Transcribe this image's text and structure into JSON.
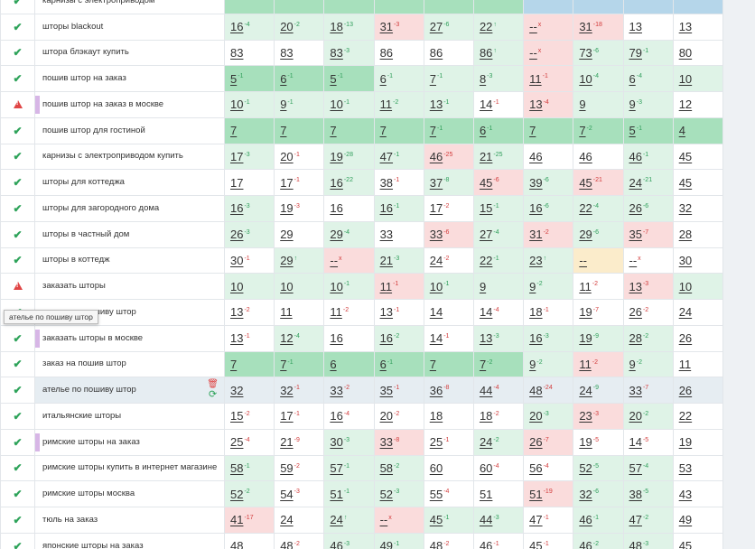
{
  "tooltip": "ателье по пошиву штор",
  "rows": [
    {
      "kw": "карнизы с электроприводом",
      "status": "ok",
      "hl": false,
      "bar": false,
      "cells": [
        [
          "",
          "",
          "G"
        ],
        [
          "",
          "",
          "G"
        ],
        [
          "",
          "",
          "G"
        ],
        [
          "",
          "",
          "G"
        ],
        [
          "",
          "",
          "G"
        ],
        [
          "",
          "",
          "G"
        ],
        [
          "",
          "",
          "b"
        ],
        [
          "",
          "",
          "b"
        ],
        [
          "",
          "",
          "b"
        ],
        [
          "",
          "",
          "b"
        ]
      ]
    },
    {
      "kw": "шторы blackout",
      "status": "ok",
      "hl": false,
      "bar": false,
      "cells": [
        [
          "16",
          "-4",
          "g"
        ],
        [
          "20",
          "-2",
          "g"
        ],
        [
          "18",
          "-13",
          "g"
        ],
        [
          "31",
          "-3",
          "r"
        ],
        [
          "27",
          "-6",
          "g"
        ],
        [
          "22",
          "↑",
          "g"
        ],
        [
          "--",
          "x",
          "r"
        ],
        [
          "31",
          "-18",
          "r"
        ],
        [
          "13",
          "",
          "w"
        ],
        [
          "13",
          "",
          "w"
        ]
      ]
    },
    {
      "kw": "штора блэкаут купить",
      "status": "ok",
      "hl": false,
      "bar": false,
      "cells": [
        [
          "83",
          "",
          "w"
        ],
        [
          "83",
          "",
          "w"
        ],
        [
          "83",
          "-3",
          "g"
        ],
        [
          "86",
          "",
          "w"
        ],
        [
          "86",
          "",
          "w"
        ],
        [
          "86",
          "↑",
          "g"
        ],
        [
          "--",
          "x",
          "r"
        ],
        [
          "73",
          "-6",
          "g"
        ],
        [
          "79",
          "-1",
          "g"
        ],
        [
          "80",
          "",
          "w"
        ]
      ]
    },
    {
      "kw": "пошив штор на заказ",
      "status": "ok",
      "hl": false,
      "bar": false,
      "cells": [
        [
          "5",
          "-1",
          "G"
        ],
        [
          "6",
          "-1",
          "G"
        ],
        [
          "5",
          "-1",
          "G"
        ],
        [
          "6",
          "-1",
          "g"
        ],
        [
          "7",
          "-1",
          "g"
        ],
        [
          "8",
          "-3",
          "g"
        ],
        [
          "11",
          "-1",
          "r"
        ],
        [
          "10",
          "-4",
          "g"
        ],
        [
          "6",
          "-4",
          "g"
        ],
        [
          "10",
          "",
          "g"
        ]
      ]
    },
    {
      "kw": "пошив штор на заказ в москве",
      "status": "warn",
      "hl": false,
      "bar": true,
      "cells": [
        [
          "10",
          "-1",
          "g"
        ],
        [
          "9",
          "-1",
          "g"
        ],
        [
          "10",
          "-1",
          "g"
        ],
        [
          "11",
          "-2",
          "g"
        ],
        [
          "13",
          "-1",
          "g"
        ],
        [
          "14",
          "-1",
          "w"
        ],
        [
          "13",
          "-4",
          "r"
        ],
        [
          "9",
          "",
          "g"
        ],
        [
          "9",
          "-3",
          "g"
        ],
        [
          "12",
          "",
          "w"
        ]
      ]
    },
    {
      "kw": "пошив штор для гостиной",
      "status": "ok",
      "hl": false,
      "bar": false,
      "cells": [
        [
          "7",
          "",
          "G"
        ],
        [
          "7",
          "",
          "G"
        ],
        [
          "7",
          "",
          "G"
        ],
        [
          "7",
          "",
          "G"
        ],
        [
          "7",
          "-1",
          "G"
        ],
        [
          "6",
          "-1",
          "G"
        ],
        [
          "7",
          "",
          "G"
        ],
        [
          "7",
          "-2",
          "G"
        ],
        [
          "5",
          "-1",
          "G"
        ],
        [
          "4",
          "",
          "G"
        ]
      ]
    },
    {
      "kw": "карнизы с электроприводом купить",
      "status": "ok",
      "hl": false,
      "bar": false,
      "cells": [
        [
          "17",
          "-3",
          "g"
        ],
        [
          "20",
          "-1",
          "w"
        ],
        [
          "19",
          "-28",
          "g"
        ],
        [
          "47",
          "-1",
          "g"
        ],
        [
          "46",
          "-25",
          "r"
        ],
        [
          "21",
          "-25",
          "g"
        ],
        [
          "46",
          "",
          "w"
        ],
        [
          "46",
          "",
          "w"
        ],
        [
          "46",
          "-1",
          "g"
        ],
        [
          "45",
          "",
          "w"
        ]
      ]
    },
    {
      "kw": "шторы для коттеджа",
      "status": "ok",
      "hl": false,
      "bar": false,
      "cells": [
        [
          "17",
          "",
          "w"
        ],
        [
          "17",
          "-1",
          "w"
        ],
        [
          "16",
          "-22",
          "g"
        ],
        [
          "38",
          "-1",
          "w"
        ],
        [
          "37",
          "-8",
          "g"
        ],
        [
          "45",
          "-6",
          "r"
        ],
        [
          "39",
          "-6",
          "g"
        ],
        [
          "45",
          "-21",
          "r"
        ],
        [
          "24",
          "-21",
          "g"
        ],
        [
          "45",
          "",
          "w"
        ]
      ]
    },
    {
      "kw": "шторы для загородного дома",
      "status": "ok",
      "hl": false,
      "bar": false,
      "cells": [
        [
          "16",
          "-3",
          "g"
        ],
        [
          "19",
          "-3",
          "w"
        ],
        [
          "16",
          "",
          "w"
        ],
        [
          "16",
          "-1",
          "g"
        ],
        [
          "17",
          "-2",
          "w"
        ],
        [
          "15",
          "-1",
          "g"
        ],
        [
          "16",
          "-6",
          "g"
        ],
        [
          "22",
          "-4",
          "g"
        ],
        [
          "26",
          "-6",
          "g"
        ],
        [
          "32",
          "",
          "w"
        ]
      ]
    },
    {
      "kw": "шторы в частный дом",
      "status": "ok",
      "hl": false,
      "bar": false,
      "cells": [
        [
          "26",
          "-3",
          "g"
        ],
        [
          "29",
          "",
          "w"
        ],
        [
          "29",
          "-4",
          "g"
        ],
        [
          "33",
          "",
          "w"
        ],
        [
          "33",
          "-6",
          "r"
        ],
        [
          "27",
          "-4",
          "g"
        ],
        [
          "31",
          "-2",
          "r"
        ],
        [
          "29",
          "-6",
          "g"
        ],
        [
          "35",
          "-7",
          "r"
        ],
        [
          "28",
          "",
          "w"
        ]
      ]
    },
    {
      "kw": "шторы в коттедж",
      "status": "ok",
      "hl": false,
      "bar": false,
      "cells": [
        [
          "30",
          "-1",
          "w"
        ],
        [
          "29",
          "↑",
          "g"
        ],
        [
          "--",
          "x",
          "r"
        ],
        [
          "21",
          "-3",
          "g"
        ],
        [
          "24",
          "-2",
          "w"
        ],
        [
          "22",
          "-1",
          "g"
        ],
        [
          "23",
          "↑",
          "g"
        ],
        [
          "--",
          "",
          "y"
        ],
        [
          "--",
          "x",
          "w"
        ],
        [
          "30",
          "",
          "w"
        ]
      ]
    },
    {
      "kw": "заказать шторы",
      "status": "warn",
      "hl": false,
      "bar": false,
      "cells": [
        [
          "10",
          "",
          "g"
        ],
        [
          "10",
          "",
          "g"
        ],
        [
          "10",
          "-1",
          "g"
        ],
        [
          "11",
          "-1",
          "r"
        ],
        [
          "10",
          "-1",
          "g"
        ],
        [
          "9",
          "",
          "g"
        ],
        [
          "9",
          "-2",
          "g"
        ],
        [
          "11",
          "-2",
          "w"
        ],
        [
          "13",
          "-3",
          "r"
        ],
        [
          "10",
          "",
          "g"
        ]
      ]
    },
    {
      "kw": "ателье по пошиву штор",
      "status": "ok",
      "hl": false,
      "bar": false,
      "cells": [
        [
          "13",
          "-2",
          "w"
        ],
        [
          "11",
          "",
          "w"
        ],
        [
          "11",
          "-2",
          "w"
        ],
        [
          "13",
          "-1",
          "w"
        ],
        [
          "14",
          "",
          "w"
        ],
        [
          "14",
          "-4",
          "w"
        ],
        [
          "18",
          "-1",
          "w"
        ],
        [
          "19",
          "-7",
          "w"
        ],
        [
          "26",
          "-2",
          "w"
        ],
        [
          "24",
          "",
          "w"
        ]
      ]
    },
    {
      "kw": "заказать шторы в москве",
      "status": "ok",
      "hl": false,
      "bar": true,
      "cells": [
        [
          "13",
          "-1",
          "w"
        ],
        [
          "12",
          "-4",
          "g"
        ],
        [
          "16",
          "",
          "w"
        ],
        [
          "16",
          "-2",
          "g"
        ],
        [
          "14",
          "-1",
          "w"
        ],
        [
          "13",
          "-3",
          "g"
        ],
        [
          "16",
          "-3",
          "g"
        ],
        [
          "19",
          "-9",
          "g"
        ],
        [
          "28",
          "-2",
          "g"
        ],
        [
          "26",
          "",
          "w"
        ]
      ]
    },
    {
      "kw": "заказ на пошив штор",
      "status": "ok",
      "hl": false,
      "bar": false,
      "cells": [
        [
          "7",
          "",
          "G"
        ],
        [
          "7",
          "-1",
          "G"
        ],
        [
          "6",
          "",
          "G"
        ],
        [
          "6",
          "-1",
          "G"
        ],
        [
          "7",
          "",
          "G"
        ],
        [
          "7",
          "-2",
          "G"
        ],
        [
          "9",
          "-2",
          "g"
        ],
        [
          "11",
          "-2",
          "r"
        ],
        [
          "9",
          "-2",
          "g"
        ],
        [
          "11",
          "",
          "w"
        ]
      ]
    },
    {
      "kw": "ателье по пошиву штор",
      "status": "ok",
      "hl": true,
      "bar": false,
      "cells": [
        [
          "32",
          "",
          "w"
        ],
        [
          "32",
          "-1",
          "w"
        ],
        [
          "33",
          "-2",
          "w"
        ],
        [
          "35",
          "-1",
          "w"
        ],
        [
          "36",
          "-8",
          "w"
        ],
        [
          "44",
          "-4",
          "w"
        ],
        [
          "48",
          "-24",
          "r"
        ],
        [
          "24",
          "-9",
          "g"
        ],
        [
          "33",
          "-7",
          "r"
        ],
        [
          "26",
          "",
          "w"
        ]
      ]
    },
    {
      "kw": "итальянские шторы",
      "status": "ok",
      "hl": false,
      "bar": false,
      "cells": [
        [
          "15",
          "-2",
          "w"
        ],
        [
          "17",
          "-1",
          "w"
        ],
        [
          "16",
          "-4",
          "w"
        ],
        [
          "20",
          "-2",
          "w"
        ],
        [
          "18",
          "",
          "w"
        ],
        [
          "18",
          "-2",
          "w"
        ],
        [
          "20",
          "-3",
          "g"
        ],
        [
          "23",
          "-3",
          "r"
        ],
        [
          "20",
          "-2",
          "g"
        ],
        [
          "22",
          "",
          "w"
        ]
      ]
    },
    {
      "kw": "римские шторы на заказ",
      "status": "ok",
      "hl": false,
      "bar": true,
      "cells": [
        [
          "25",
          "-4",
          "w"
        ],
        [
          "21",
          "-9",
          "w"
        ],
        [
          "30",
          "-3",
          "g"
        ],
        [
          "33",
          "-8",
          "r"
        ],
        [
          "25",
          "-1",
          "w"
        ],
        [
          "24",
          "-2",
          "g"
        ],
        [
          "26",
          "-7",
          "r"
        ],
        [
          "19",
          "-5",
          "w"
        ],
        [
          "14",
          "-5",
          "w"
        ],
        [
          "19",
          "",
          "w"
        ]
      ]
    },
    {
      "kw": "римские шторы купить в интернет магазине",
      "status": "ok",
      "hl": false,
      "bar": false,
      "cells": [
        [
          "58",
          "-1",
          "g"
        ],
        [
          "59",
          "-2",
          "w"
        ],
        [
          "57",
          "-1",
          "g"
        ],
        [
          "58",
          "-2",
          "g"
        ],
        [
          "60",
          "",
          "w"
        ],
        [
          "60",
          "-4",
          "w"
        ],
        [
          "56",
          "-4",
          "w"
        ],
        [
          "52",
          "-5",
          "g"
        ],
        [
          "57",
          "-4",
          "g"
        ],
        [
          "53",
          "",
          "w"
        ]
      ]
    },
    {
      "kw": "римские шторы москва",
      "status": "ok",
      "hl": false,
      "bar": false,
      "cells": [
        [
          "52",
          "-2",
          "g"
        ],
        [
          "54",
          "-3",
          "w"
        ],
        [
          "51",
          "-1",
          "g"
        ],
        [
          "52",
          "-3",
          "g"
        ],
        [
          "55",
          "-4",
          "w"
        ],
        [
          "51",
          "",
          "w"
        ],
        [
          "51",
          "-19",
          "r"
        ],
        [
          "32",
          "-6",
          "g"
        ],
        [
          "38",
          "-5",
          "g"
        ],
        [
          "43",
          "",
          "w"
        ]
      ]
    },
    {
      "kw": "тюль на заказ",
      "status": "ok",
      "hl": false,
      "bar": false,
      "cells": [
        [
          "41",
          "-17",
          "r"
        ],
        [
          "24",
          "",
          "w"
        ],
        [
          "24",
          "↑",
          "g"
        ],
        [
          "--",
          "x",
          "r"
        ],
        [
          "45",
          "-1",
          "g"
        ],
        [
          "44",
          "-3",
          "g"
        ],
        [
          "47",
          "-1",
          "w"
        ],
        [
          "46",
          "-1",
          "g"
        ],
        [
          "47",
          "-2",
          "g"
        ],
        [
          "49",
          "",
          "w"
        ]
      ]
    },
    {
      "kw": "японские шторы на заказ",
      "status": "ok",
      "hl": false,
      "bar": false,
      "cells": [
        [
          "48",
          "",
          "w"
        ],
        [
          "48",
          "-2",
          "w"
        ],
        [
          "46",
          "-3",
          "g"
        ],
        [
          "49",
          "-1",
          "g"
        ],
        [
          "48",
          "-2",
          "w"
        ],
        [
          "46",
          "-1",
          "w"
        ],
        [
          "45",
          "-1",
          "w"
        ],
        [
          "46",
          "-2",
          "g"
        ],
        [
          "48",
          "-3",
          "g"
        ],
        [
          "45",
          "",
          "w"
        ]
      ]
    }
  ]
}
